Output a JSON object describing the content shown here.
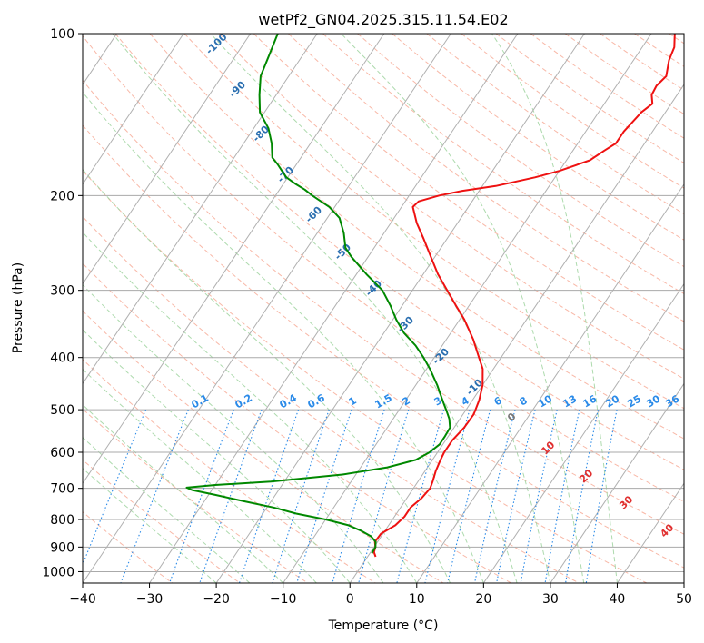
{
  "chart_data": {
    "type": "line",
    "subtype": "skew-T log-P diagram",
    "title": "wetPf2_GN04.2025.315.11.54.E02",
    "xlabel": "Temperature (°C)",
    "ylabel": "Pressure (hPa)",
    "xlim": [
      -40,
      50
    ],
    "ylim": [
      1050,
      100
    ],
    "y_scale": "log",
    "x_ticks": [
      "−40",
      "−30",
      "−20",
      "−10",
      "0",
      "10",
      "20",
      "30",
      "40",
      "50"
    ],
    "y_ticks": [
      "100",
      "200",
      "300",
      "400",
      "500",
      "600",
      "700",
      "800",
      "900",
      "1000"
    ],
    "grid": true,
    "series": [
      {
        "name": "",
        "role": "temperature",
        "color": "#ee1111",
        "points": [
          [
            938,
            1.2
          ],
          [
            920,
            0.5
          ],
          [
            900,
            0.2
          ],
          [
            880,
            -0.4
          ],
          [
            850,
            -0.3
          ],
          [
            820,
            1.0
          ],
          [
            790,
            1.5
          ],
          [
            760,
            1.5
          ],
          [
            730,
            2.2
          ],
          [
            700,
            2.5
          ],
          [
            680,
            2.2
          ],
          [
            650,
            1.6
          ],
          [
            620,
            1.2
          ],
          [
            600,
            1.0
          ],
          [
            570,
            1.0
          ],
          [
            540,
            1.5
          ],
          [
            510,
            1.6
          ],
          [
            480,
            1.0
          ],
          [
            450,
            0.0
          ],
          [
            420,
            -1.6
          ],
          [
            400,
            -3.3
          ],
          [
            370,
            -6.0
          ],
          [
            340,
            -9.3
          ],
          [
            320,
            -12.0
          ],
          [
            300,
            -14.8
          ],
          [
            280,
            -17.8
          ],
          [
            260,
            -20.6
          ],
          [
            240,
            -23.6
          ],
          [
            225,
            -26.1
          ],
          [
            210,
            -28.3
          ],
          [
            205,
            -28.0
          ],
          [
            200,
            -25.5
          ],
          [
            196,
            -22.5
          ],
          [
            192,
            -18.0
          ],
          [
            185,
            -13.0
          ],
          [
            180,
            -10.0
          ],
          [
            172,
            -6.5
          ],
          [
            165,
            -5.3
          ],
          [
            160,
            -4.3
          ],
          [
            152,
            -4.3
          ],
          [
            140,
            -3.6
          ],
          [
            135,
            -2.8
          ],
          [
            130,
            -3.8
          ],
          [
            125,
            -4.0
          ],
          [
            120,
            -3.5
          ],
          [
            112,
            -4.7
          ],
          [
            106,
            -5.2
          ],
          [
            100,
            -6.5
          ]
        ]
      },
      {
        "name": "",
        "role": "dewpoint",
        "color": "#008800",
        "points": [
          [
            925,
            0.3
          ],
          [
            900,
            0.2
          ],
          [
            880,
            -0.3
          ],
          [
            860,
            -1.5
          ],
          [
            840,
            -3.5
          ],
          [
            820,
            -6.0
          ],
          [
            800,
            -10.0
          ],
          [
            780,
            -15.0
          ],
          [
            760,
            -19.0
          ],
          [
            740,
            -24.0
          ],
          [
            720,
            -29.0
          ],
          [
            705,
            -33.0
          ],
          [
            698,
            -34.0
          ],
          [
            690,
            -30.0
          ],
          [
            680,
            -22.0
          ],
          [
            660,
            -12.0
          ],
          [
            640,
            -6.0
          ],
          [
            620,
            -2.5
          ],
          [
            600,
            -1.2
          ],
          [
            580,
            -0.5
          ],
          [
            560,
            -0.5
          ],
          [
            540,
            -0.6
          ],
          [
            520,
            -1.6
          ],
          [
            500,
            -3.0
          ],
          [
            480,
            -4.5
          ],
          [
            450,
            -6.8
          ],
          [
            420,
            -9.5
          ],
          [
            400,
            -11.6
          ],
          [
            380,
            -14.0
          ],
          [
            360,
            -17.0
          ],
          [
            340,
            -19.5
          ],
          [
            320,
            -21.8
          ],
          [
            300,
            -24.5
          ],
          [
            280,
            -28.5
          ],
          [
            260,
            -32.5
          ],
          [
            250,
            -34.3
          ],
          [
            235,
            -36.0
          ],
          [
            220,
            -38.2
          ],
          [
            210,
            -40.8
          ],
          [
            200,
            -44.5
          ],
          [
            195,
            -46.2
          ],
          [
            190,
            -48.3
          ],
          [
            185,
            -50.2
          ],
          [
            180,
            -51.5
          ],
          [
            175,
            -52.8
          ],
          [
            170,
            -54.3
          ],
          [
            160,
            -55.8
          ],
          [
            150,
            -57.8
          ],
          [
            140,
            -60.7
          ],
          [
            130,
            -62.5
          ],
          [
            120,
            -64.2
          ],
          [
            110,
            -65.0
          ],
          [
            100,
            -65.9
          ]
        ]
      }
    ],
    "isotherm_labels": [
      "-100",
      "-90",
      "-80",
      "-70",
      "-60",
      "-50",
      "-40",
      "-30",
      "-20",
      "-10",
      "0",
      "10",
      "20",
      "30",
      "40"
    ],
    "mixing_ratio_labels": [
      "0.1",
      "0.2",
      "0.4",
      "0.6",
      "1",
      "1.5",
      "2",
      "3",
      "4",
      "6",
      "8",
      "10",
      "13",
      "16",
      "20",
      "25",
      "30",
      "36"
    ],
    "colors": {
      "temperature": "#ee1111",
      "dewpoint": "#008800",
      "isotherm": "#b0b0b0",
      "dry_adiabat": "#f5a08a",
      "moist_adiabat": "#9fd49f",
      "mixing_ratio": "#2a8ae8",
      "cold_label": "#2b6fb0",
      "warm_label": "#e03030"
    }
  }
}
